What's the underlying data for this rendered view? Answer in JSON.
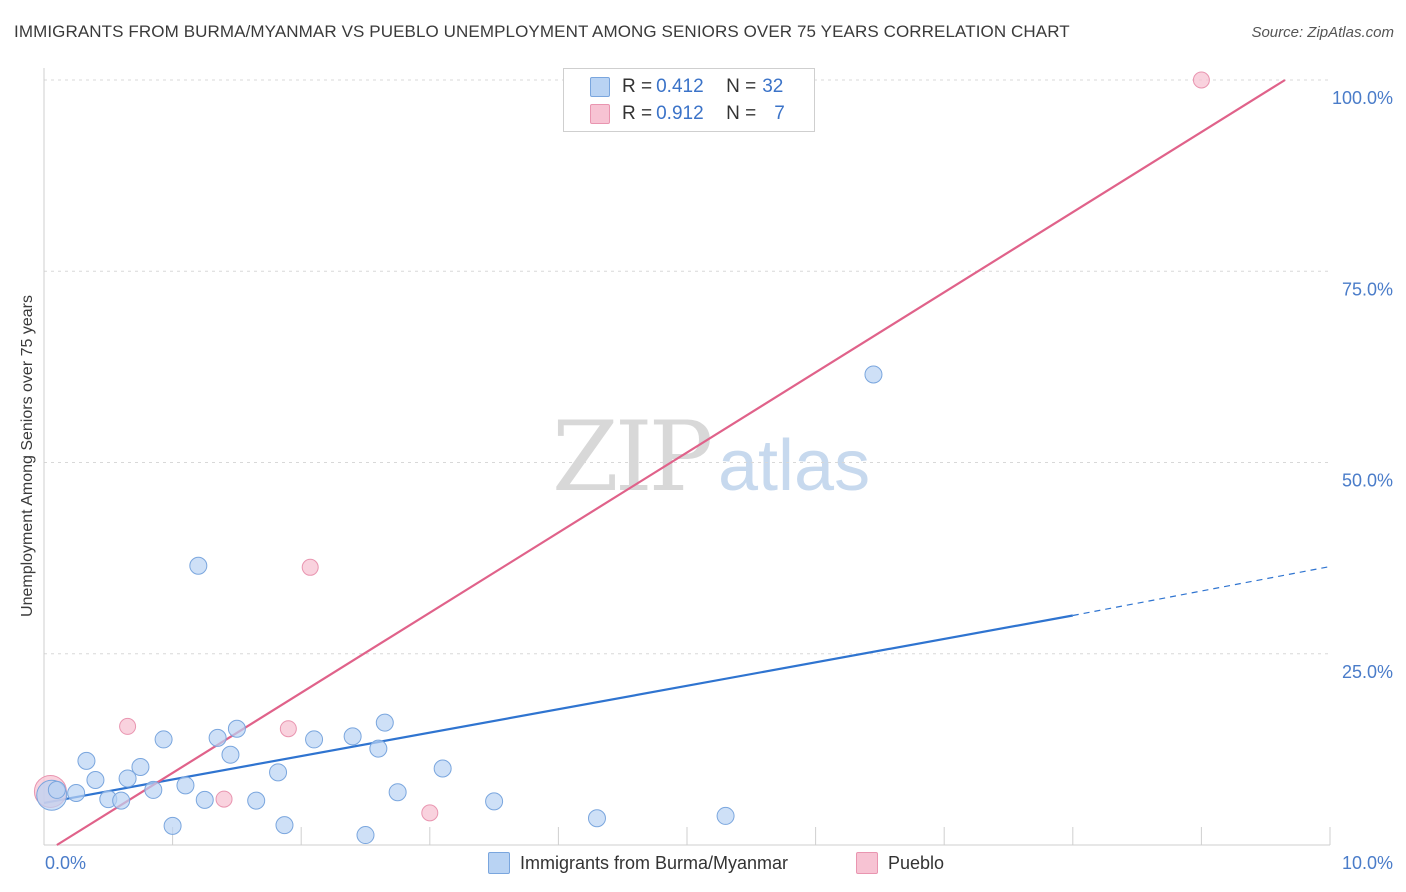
{
  "header": {
    "title": "IMMIGRANTS FROM BURMA/MYANMAR VS PUEBLO UNEMPLOYMENT AMONG SENIORS OVER 75 YEARS CORRELATION CHART",
    "source": "Source: ZipAtlas.com"
  },
  "legend_top": {
    "rows": [
      {
        "r_label": "R = ",
        "r_value": "0.412",
        "n_label": "N = ",
        "n_value": "32"
      },
      {
        "r_label": "R = ",
        "r_value": "0.912",
        "n_label": "N = ",
        "n_value": "7"
      }
    ]
  },
  "watermark": {
    "zip": "ZIP",
    "atlas": "atlas"
  },
  "colors": {
    "blue_fill": "#b9d3f3",
    "blue_stroke": "#7aa6de",
    "blue_line": "#2f74d0",
    "pink_fill": "#f7c3d3",
    "pink_stroke": "#e995b0",
    "pink_line": "#e0628a",
    "grid": "#d8d8d8",
    "axis_text": "#4a7cc9"
  },
  "chart_data": {
    "type": "scatter",
    "title": "IMMIGRANTS FROM BURMA/MYANMAR VS PUEBLO UNEMPLOYMENT AMONG SENIORS OVER 75 YEARS CORRELATION CHART",
    "xlabel": "",
    "ylabel": "Unemployment Among Seniors over 75 years",
    "xlim": [
      0,
      10
    ],
    "ylim": [
      0,
      100
    ],
    "x_tick_labels": [
      "0.0%",
      "10.0%"
    ],
    "y_tick_labels": [
      "25.0%",
      "50.0%",
      "75.0%",
      "100.0%"
    ],
    "y_ticks": [
      25,
      50,
      75,
      100
    ],
    "series": [
      {
        "name": "Immigrants from Burma/Myanmar",
        "color": "blue",
        "points": [
          [
            0.06,
            6.5
          ],
          [
            0.1,
            7.2
          ],
          [
            0.25,
            6.8
          ],
          [
            0.33,
            11.0
          ],
          [
            0.4,
            8.5
          ],
          [
            0.5,
            6.0
          ],
          [
            0.6,
            5.8
          ],
          [
            0.65,
            8.7
          ],
          [
            0.75,
            10.2
          ],
          [
            0.85,
            7.2
          ],
          [
            0.93,
            13.8
          ],
          [
            1.0,
            2.5
          ],
          [
            1.1,
            7.8
          ],
          [
            1.2,
            36.5
          ],
          [
            1.25,
            5.9
          ],
          [
            1.35,
            14.0
          ],
          [
            1.45,
            11.8
          ],
          [
            1.5,
            15.2
          ],
          [
            1.65,
            5.8
          ],
          [
            1.82,
            9.5
          ],
          [
            1.87,
            2.6
          ],
          [
            2.1,
            13.8
          ],
          [
            2.4,
            14.2
          ],
          [
            2.5,
            1.3
          ],
          [
            2.6,
            12.6
          ],
          [
            2.65,
            16.0
          ],
          [
            2.75,
            6.9
          ],
          [
            3.1,
            10.0
          ],
          [
            3.5,
            5.7
          ],
          [
            4.3,
            3.5
          ],
          [
            5.3,
            3.8
          ],
          [
            6.45,
            61.5
          ]
        ],
        "trend": {
          "x": [
            0.0,
            8.0
          ],
          "y": [
            5.5,
            30.0
          ],
          "dashed_to": [
            10.0,
            36.4
          ]
        }
      },
      {
        "name": "Pueblo",
        "color": "pink",
        "points": [
          [
            0.05,
            7.0
          ],
          [
            0.65,
            15.5
          ],
          [
            1.4,
            6.0
          ],
          [
            1.9,
            15.2
          ],
          [
            2.07,
            36.3
          ],
          [
            3.0,
            4.2
          ],
          [
            9.0,
            100.0
          ]
        ],
        "trend": {
          "x": [
            0.1,
            9.65
          ],
          "y": [
            0.0,
            100.0
          ]
        }
      }
    ],
    "legend_bottom": [
      "Immigrants from Burma/Myanmar",
      "Pueblo"
    ]
  }
}
